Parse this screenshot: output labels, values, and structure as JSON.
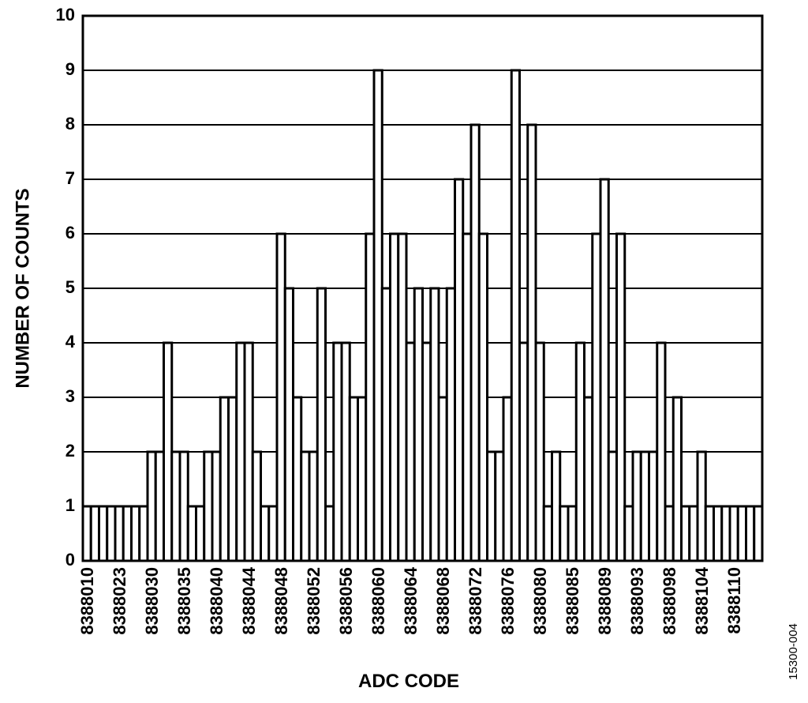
{
  "chart_data": {
    "type": "bar",
    "x_label": "ADC CODE",
    "y_label": "NUMBER OF COUNTS",
    "footnote": "15300-004",
    "categories": [
      "8388010",
      null,
      null,
      null,
      "8388023",
      null,
      null,
      null,
      "8388030",
      null,
      null,
      null,
      "8388035",
      null,
      null,
      null,
      "8388040",
      null,
      null,
      null,
      "8388044",
      null,
      null,
      null,
      "8388048",
      null,
      null,
      null,
      "8388052",
      null,
      null,
      null,
      "8388056",
      null,
      null,
      null,
      "8388060",
      null,
      null,
      null,
      "8388064",
      null,
      null,
      null,
      "8388068",
      null,
      null,
      null,
      "8388072",
      null,
      null,
      null,
      "8388076",
      null,
      null,
      null,
      "8388080",
      null,
      null,
      null,
      "8388085",
      null,
      null,
      null,
      "8388089",
      null,
      null,
      null,
      "8388093",
      null,
      null,
      null,
      "8388098",
      null,
      null,
      null,
      "8388104",
      null,
      null,
      null,
      "8388110",
      null,
      null,
      null
    ],
    "values": [
      1,
      1,
      1,
      1,
      1,
      1,
      1,
      1,
      2,
      2,
      4,
      2,
      2,
      1,
      1,
      2,
      2,
      3,
      3,
      4,
      4,
      2,
      1,
      1,
      6,
      5,
      3,
      2,
      2,
      5,
      1,
      4,
      4,
      3,
      3,
      6,
      9,
      5,
      6,
      6,
      4,
      5,
      4,
      5,
      3,
      5,
      7,
      6,
      8,
      6,
      2,
      2,
      3,
      9,
      4,
      8,
      4,
      1,
      2,
      1,
      1,
      4,
      3,
      6,
      7,
      2,
      6,
      1,
      2,
      2,
      2,
      4,
      1,
      3,
      1,
      1,
      2,
      1,
      1,
      1,
      1,
      1,
      1,
      1
    ],
    "color": "#ffffff",
    "ylim": [
      0,
      10
    ],
    "yticks": [
      0,
      1,
      2,
      3,
      4,
      5,
      6,
      7,
      8,
      9,
      10
    ],
    "grid": true
  }
}
